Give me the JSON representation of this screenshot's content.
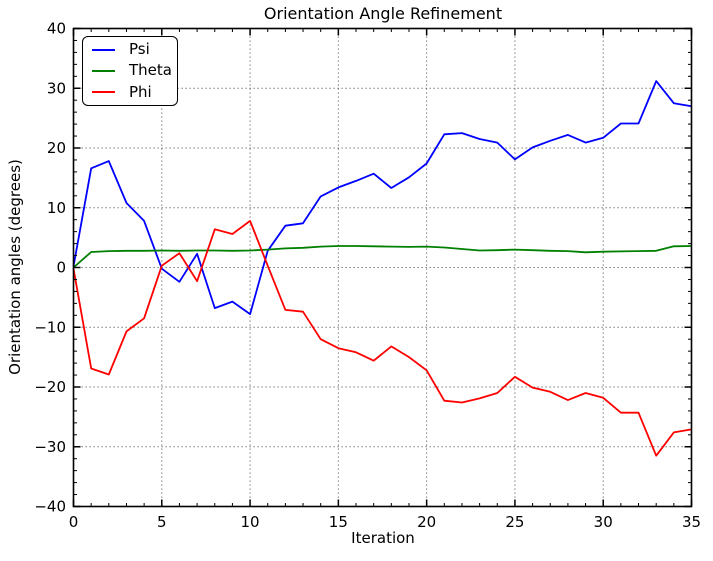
{
  "figure": {
    "background": "#ffffff",
    "frame_color": "#000000",
    "grid_color": "#666666"
  },
  "chart_data": {
    "type": "line",
    "title": "Orientation Angle Refinement",
    "xlabel": "Iteration",
    "ylabel": "Orientation angles (degrees)",
    "xlim": [
      0,
      35
    ],
    "ylim": [
      -40,
      40
    ],
    "grid": "dotted",
    "legend_position": "upper-left",
    "x_ticks": [
      0,
      5,
      10,
      15,
      20,
      25,
      30,
      35
    ],
    "x_tick_labels": [
      "0",
      "5",
      "10",
      "15",
      "20",
      "25",
      "30",
      "35"
    ],
    "y_ticks": [
      -40,
      -30,
      -20,
      -10,
      0,
      10,
      20,
      30,
      40
    ],
    "y_tick_labels": [
      "−40",
      "−30",
      "−20",
      "−10",
      "0",
      "10",
      "20",
      "30",
      "40"
    ],
    "x_minor_step": 1,
    "y_minor_step": 2,
    "x": [
      0,
      1,
      2,
      3,
      4,
      5,
      6,
      7,
      8,
      9,
      10,
      11,
      12,
      13,
      14,
      15,
      16,
      17,
      18,
      19,
      20,
      21,
      22,
      23,
      24,
      25,
      26,
      27,
      28,
      29,
      30,
      31,
      32,
      33,
      34,
      35
    ],
    "series": [
      {
        "name": "Psi",
        "color": "#0000ff",
        "values": [
          0.2,
          16.6,
          17.8,
          10.8,
          7.8,
          -0.2,
          -2.4,
          2.3,
          -6.8,
          -5.7,
          -7.8,
          2.8,
          7.0,
          7.4,
          11.9,
          13.4,
          14.5,
          15.7,
          13.3,
          15.1,
          17.4,
          22.3,
          22.5,
          21.5,
          20.9,
          18.1,
          20.1,
          21.2,
          22.2,
          20.9,
          21.7,
          24.1,
          24.1,
          31.2,
          27.5,
          27.0
        ]
      },
      {
        "name": "Theta",
        "color": "#008000",
        "values": [
          0.0,
          2.6,
          2.75,
          2.8,
          2.8,
          2.85,
          2.8,
          2.85,
          2.85,
          2.8,
          2.85,
          3.0,
          3.2,
          3.3,
          3.5,
          3.6,
          3.6,
          3.55,
          3.5,
          3.45,
          3.5,
          3.35,
          3.1,
          2.85,
          2.9,
          3.0,
          2.9,
          2.8,
          2.75,
          2.55,
          2.65,
          2.7,
          2.75,
          2.8,
          3.55,
          3.6
        ]
      },
      {
        "name": "Phi",
        "color": "#ff0000",
        "values": [
          -0.2,
          -16.9,
          -17.9,
          -10.7,
          -8.5,
          0.3,
          2.4,
          -2.3,
          6.4,
          5.6,
          7.8,
          0.3,
          -7.1,
          -7.4,
          -12.0,
          -13.5,
          -14.2,
          -15.6,
          -13.2,
          -15.0,
          -17.2,
          -22.3,
          -22.6,
          -21.9,
          -21.0,
          -18.3,
          -20.1,
          -20.8,
          -22.2,
          -21.0,
          -21.8,
          -24.3,
          -24.3,
          -31.5,
          -27.6,
          -27.1
        ]
      }
    ]
  }
}
